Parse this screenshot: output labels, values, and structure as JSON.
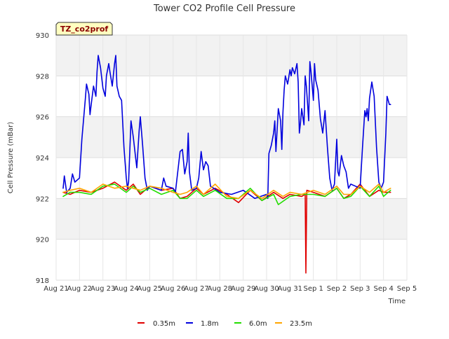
{
  "chart_data": {
    "type": "line",
    "title": "Tower CO2 Profile Cell Pressure",
    "xlabel": "Time",
    "ylabel": "Cell Pressure (mBar)",
    "badge": "TZ_co2prof",
    "ylim": [
      918,
      930
    ],
    "xlim": [
      0,
      15
    ],
    "yticks": [
      918,
      920,
      922,
      924,
      926,
      928,
      930
    ],
    "xticks": [
      {
        "pos": 0,
        "label": "Aug 21"
      },
      {
        "pos": 1,
        "label": "Aug 22"
      },
      {
        "pos": 2,
        "label": "Aug 23"
      },
      {
        "pos": 3,
        "label": "Aug 24"
      },
      {
        "pos": 4,
        "label": "Aug 25"
      },
      {
        "pos": 5,
        "label": "Aug 26"
      },
      {
        "pos": 6,
        "label": "Aug 27"
      },
      {
        "pos": 7,
        "label": "Aug 28"
      },
      {
        "pos": 8,
        "label": "Aug 29"
      },
      {
        "pos": 9,
        "label": "Aug 30"
      },
      {
        "pos": 10,
        "label": "Aug 31"
      },
      {
        "pos": 11,
        "label": "Sep 1"
      },
      {
        "pos": 12,
        "label": "Sep 2"
      },
      {
        "pos": 13,
        "label": "Sep 3"
      },
      {
        "pos": 14,
        "label": "Sep 4"
      },
      {
        "pos": 15,
        "label": "Sep 5"
      }
    ],
    "grid": true,
    "legend_position": "bottom",
    "series": [
      {
        "name": "0.35m",
        "color": "#e00000",
        "points": [
          [
            0.3,
            922.3
          ],
          [
            0.6,
            922.2
          ],
          [
            1.0,
            922.4
          ],
          [
            1.5,
            922.3
          ],
          [
            2.0,
            922.5
          ],
          [
            2.5,
            922.8
          ],
          [
            3.0,
            922.4
          ],
          [
            3.3,
            922.7
          ],
          [
            3.6,
            922.2
          ],
          [
            4.0,
            922.6
          ],
          [
            4.5,
            922.4
          ],
          [
            5.0,
            922.5
          ],
          [
            5.3,
            922.0
          ],
          [
            5.6,
            922.1
          ],
          [
            6.0,
            922.5
          ],
          [
            6.3,
            922.2
          ],
          [
            6.8,
            922.5
          ],
          [
            7.3,
            922.2
          ],
          [
            7.8,
            921.8
          ],
          [
            8.3,
            922.4
          ],
          [
            8.8,
            921.9
          ],
          [
            9.3,
            922.3
          ],
          [
            9.7,
            922.0
          ],
          [
            10.0,
            922.2
          ],
          [
            10.5,
            922.1
          ],
          [
            10.65,
            922.2
          ],
          [
            10.68,
            918.35
          ],
          [
            10.72,
            922.4
          ],
          [
            11.0,
            922.3
          ],
          [
            11.5,
            922.1
          ],
          [
            12.0,
            922.5
          ],
          [
            12.3,
            922.0
          ],
          [
            12.6,
            922.2
          ],
          [
            13.0,
            922.7
          ],
          [
            13.4,
            922.1
          ],
          [
            13.8,
            922.4
          ],
          [
            14.0,
            922.3
          ],
          [
            14.3,
            922.3
          ]
        ]
      },
      {
        "name": "1.8m",
        "color": "#0000dd",
        "points": [
          [
            0.3,
            922.5
          ],
          [
            0.35,
            923.1
          ],
          [
            0.45,
            922.3
          ],
          [
            0.6,
            922.5
          ],
          [
            0.7,
            923.2
          ],
          [
            0.8,
            922.8
          ],
          [
            1.0,
            923.0
          ],
          [
            1.1,
            924.9
          ],
          [
            1.25,
            926.9
          ],
          [
            1.3,
            927.6
          ],
          [
            1.4,
            927.1
          ],
          [
            1.45,
            926.1
          ],
          [
            1.5,
            926.6
          ],
          [
            1.6,
            927.5
          ],
          [
            1.7,
            927.0
          ],
          [
            1.75,
            928.2
          ],
          [
            1.8,
            929.0
          ],
          [
            1.9,
            928.4
          ],
          [
            2.0,
            927.4
          ],
          [
            2.1,
            927.0
          ],
          [
            2.15,
            928.0
          ],
          [
            2.25,
            928.6
          ],
          [
            2.3,
            928.2
          ],
          [
            2.4,
            927.5
          ],
          [
            2.5,
            928.6
          ],
          [
            2.55,
            929.0
          ],
          [
            2.6,
            927.5
          ],
          [
            2.7,
            927.0
          ],
          [
            2.8,
            926.8
          ],
          [
            2.9,
            924.5
          ],
          [
            3.0,
            923.0
          ],
          [
            3.05,
            922.5
          ],
          [
            3.1,
            922.8
          ],
          [
            3.2,
            925.8
          ],
          [
            3.3,
            925.0
          ],
          [
            3.4,
            924.0
          ],
          [
            3.45,
            923.5
          ],
          [
            3.55,
            925.3
          ],
          [
            3.6,
            926.0
          ],
          [
            3.7,
            924.6
          ],
          [
            3.8,
            923.0
          ],
          [
            3.9,
            922.4
          ],
          [
            4.0,
            922.6
          ],
          [
            4.5,
            922.4
          ],
          [
            4.6,
            923.0
          ],
          [
            4.7,
            922.6
          ],
          [
            5.0,
            922.5
          ],
          [
            5.1,
            922.3
          ],
          [
            5.3,
            924.3
          ],
          [
            5.4,
            924.4
          ],
          [
            5.5,
            923.2
          ],
          [
            5.6,
            923.8
          ],
          [
            5.65,
            925.2
          ],
          [
            5.7,
            923.3
          ],
          [
            5.8,
            922.4
          ],
          [
            6.0,
            922.5
          ],
          [
            6.1,
            923.0
          ],
          [
            6.2,
            924.3
          ],
          [
            6.3,
            923.4
          ],
          [
            6.4,
            923.8
          ],
          [
            6.5,
            923.6
          ],
          [
            6.6,
            922.6
          ],
          [
            7.0,
            922.3
          ],
          [
            7.5,
            922.2
          ],
          [
            8.0,
            922.4
          ],
          [
            8.5,
            922.0
          ],
          [
            9.0,
            922.2
          ],
          [
            9.05,
            922.0
          ],
          [
            9.1,
            924.2
          ],
          [
            9.2,
            924.6
          ],
          [
            9.3,
            925.2
          ],
          [
            9.35,
            925.8
          ],
          [
            9.4,
            924.3
          ],
          [
            9.5,
            926.4
          ],
          [
            9.6,
            925.8
          ],
          [
            9.65,
            924.4
          ],
          [
            9.7,
            926.2
          ],
          [
            9.75,
            927.3
          ],
          [
            9.8,
            928.0
          ],
          [
            9.9,
            927.6
          ],
          [
            10.0,
            928.3
          ],
          [
            10.05,
            928.0
          ],
          [
            10.1,
            928.4
          ],
          [
            10.2,
            928.1
          ],
          [
            10.3,
            928.6
          ],
          [
            10.35,
            927.7
          ],
          [
            10.4,
            925.2
          ],
          [
            10.45,
            925.7
          ],
          [
            10.5,
            926.4
          ],
          [
            10.6,
            925.6
          ],
          [
            10.65,
            928.0
          ],
          [
            10.7,
            927.5
          ],
          [
            10.8,
            925.8
          ],
          [
            10.85,
            928.7
          ],
          [
            10.9,
            928.2
          ],
          [
            11.0,
            926.8
          ],
          [
            11.05,
            928.6
          ],
          [
            11.1,
            927.8
          ],
          [
            11.2,
            927.3
          ],
          [
            11.3,
            925.9
          ],
          [
            11.4,
            925.2
          ],
          [
            11.5,
            926.3
          ],
          [
            11.6,
            924.5
          ],
          [
            11.7,
            923.0
          ],
          [
            11.8,
            922.4
          ],
          [
            11.9,
            922.7
          ],
          [
            12.0,
            924.9
          ],
          [
            12.05,
            923.3
          ],
          [
            12.1,
            923.1
          ],
          [
            12.2,
            924.1
          ],
          [
            12.3,
            923.6
          ],
          [
            12.4,
            923.3
          ],
          [
            12.5,
            922.5
          ],
          [
            12.6,
            922.7
          ],
          [
            12.8,
            922.6
          ],
          [
            13.0,
            922.5
          ],
          [
            13.1,
            924.5
          ],
          [
            13.2,
            926.3
          ],
          [
            13.25,
            926.0
          ],
          [
            13.3,
            926.4
          ],
          [
            13.35,
            925.8
          ],
          [
            13.4,
            926.9
          ],
          [
            13.5,
            927.7
          ],
          [
            13.6,
            927.0
          ],
          [
            13.7,
            924.5
          ],
          [
            13.8,
            922.8
          ],
          [
            13.9,
            922.5
          ],
          [
            14.0,
            922.8
          ],
          [
            14.1,
            925.2
          ],
          [
            14.15,
            927.0
          ],
          [
            14.25,
            926.6
          ],
          [
            14.3,
            926.6
          ]
        ]
      },
      {
        "name": "6.0m",
        "color": "#22dd00",
        "points": [
          [
            0.3,
            922.1
          ],
          [
            0.6,
            922.3
          ],
          [
            1.0,
            922.3
          ],
          [
            1.5,
            922.2
          ],
          [
            2.0,
            922.6
          ],
          [
            2.5,
            922.7
          ],
          [
            3.0,
            922.3
          ],
          [
            3.3,
            922.6
          ],
          [
            3.6,
            922.3
          ],
          [
            4.0,
            922.5
          ],
          [
            4.5,
            922.2
          ],
          [
            5.0,
            922.4
          ],
          [
            5.3,
            922.0
          ],
          [
            5.6,
            922.0
          ],
          [
            6.0,
            922.4
          ],
          [
            6.3,
            922.1
          ],
          [
            6.8,
            922.4
          ],
          [
            7.3,
            922.0
          ],
          [
            7.8,
            922.0
          ],
          [
            8.3,
            922.5
          ],
          [
            8.8,
            921.9
          ],
          [
            9.3,
            922.2
          ],
          [
            9.5,
            921.7
          ],
          [
            10.0,
            922.1
          ],
          [
            10.5,
            922.2
          ],
          [
            11.0,
            922.2
          ],
          [
            11.5,
            922.1
          ],
          [
            12.0,
            922.5
          ],
          [
            12.3,
            922.0
          ],
          [
            12.6,
            922.1
          ],
          [
            13.0,
            922.6
          ],
          [
            13.4,
            922.1
          ],
          [
            13.8,
            922.6
          ],
          [
            14.0,
            922.1
          ],
          [
            14.3,
            922.4
          ]
        ]
      },
      {
        "name": "23.5m",
        "color": "#ffa500",
        "points": [
          [
            0.3,
            922.3
          ],
          [
            0.6,
            922.4
          ],
          [
            1.0,
            922.5
          ],
          [
            1.5,
            922.3
          ],
          [
            2.0,
            922.7
          ],
          [
            2.5,
            922.5
          ],
          [
            3.0,
            922.6
          ],
          [
            3.3,
            922.5
          ],
          [
            3.6,
            922.4
          ],
          [
            4.0,
            922.6
          ],
          [
            4.5,
            922.5
          ],
          [
            5.0,
            922.3
          ],
          [
            5.3,
            922.2
          ],
          [
            5.6,
            922.3
          ],
          [
            6.0,
            922.6
          ],
          [
            6.3,
            922.2
          ],
          [
            6.8,
            922.7
          ],
          [
            7.3,
            922.1
          ],
          [
            7.8,
            922.0
          ],
          [
            8.3,
            922.4
          ],
          [
            8.8,
            922.0
          ],
          [
            9.3,
            922.4
          ],
          [
            9.7,
            922.1
          ],
          [
            10.0,
            922.3
          ],
          [
            10.5,
            922.2
          ],
          [
            11.0,
            922.4
          ],
          [
            11.5,
            922.2
          ],
          [
            12.0,
            922.6
          ],
          [
            12.3,
            922.2
          ],
          [
            12.6,
            922.2
          ],
          [
            13.0,
            922.6
          ],
          [
            13.4,
            922.3
          ],
          [
            13.8,
            922.7
          ],
          [
            14.0,
            922.3
          ],
          [
            14.3,
            922.5
          ]
        ]
      }
    ]
  }
}
